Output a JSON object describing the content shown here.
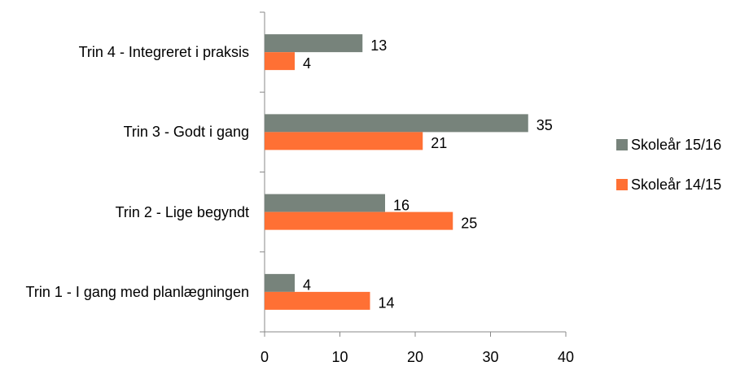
{
  "chart_data": {
    "type": "bar",
    "orientation": "horizontal",
    "categories": [
      "Trin 1 - I gang med planlægningen",
      "Trin 2 - Lige begyndt",
      "Trin 3 - Godt i gang",
      "Trin 4 - Integreret i praksis"
    ],
    "series": [
      {
        "name": "Skoleår 15/16",
        "color": "#77837b",
        "values": [
          4,
          16,
          35,
          13
        ]
      },
      {
        "name": "Skoleår 14/15",
        "color": "#ff7034",
        "values": [
          14,
          25,
          21,
          4
        ]
      }
    ],
    "xlim": [
      0,
      40
    ],
    "xticks": [
      0,
      10,
      20,
      30,
      40
    ],
    "grid": false,
    "legend": "right",
    "data_labels": true
  }
}
